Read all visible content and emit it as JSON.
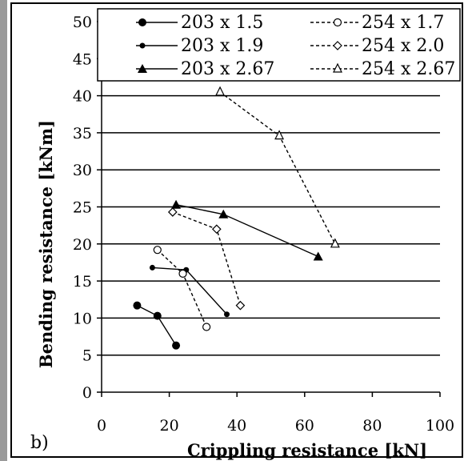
{
  "panel_label": "b)",
  "chart_data": {
    "type": "line",
    "xlabel": "Crippling resistance [kN]",
    "ylabel": "Bending resistance [kNm]",
    "xlim": [
      0,
      100
    ],
    "ylim": [
      0,
      50
    ],
    "x_ticks": [
      "0",
      "20",
      "40",
      "60",
      "80",
      "100"
    ],
    "y_ticks": [
      "0",
      "5",
      "10",
      "15",
      "20",
      "25",
      "30",
      "35",
      "40",
      "45",
      "50"
    ],
    "grid": "horizontal",
    "legend_position": "top",
    "series": [
      {
        "name": "203 x 1.5",
        "style": "solid",
        "marker": "filled-circle",
        "x": [
          10.5,
          16.5,
          22
        ],
        "y": [
          11.7,
          10.3,
          6.3
        ]
      },
      {
        "name": "203 x 1.9",
        "style": "solid",
        "marker": "filled-dot",
        "x": [
          15,
          25,
          37
        ],
        "y": [
          16.8,
          16.5,
          10.5
        ]
      },
      {
        "name": "203 x 2.67",
        "style": "solid",
        "marker": "filled-triangle",
        "x": [
          22,
          36,
          64
        ],
        "y": [
          25.3,
          24,
          18.3
        ]
      },
      {
        "name": "254 x 1.7",
        "style": "dashed",
        "marker": "open-circle",
        "x": [
          16.5,
          24,
          31
        ],
        "y": [
          19.2,
          16,
          8.8
        ]
      },
      {
        "name": "254 x 2.0",
        "style": "dashed",
        "marker": "open-diamond",
        "x": [
          21,
          34,
          41
        ],
        "y": [
          24.3,
          22,
          11.7
        ]
      },
      {
        "name": "254 x 2.67",
        "style": "dashed",
        "marker": "open-triangle",
        "x": [
          35,
          52.5,
          69
        ],
        "y": [
          40.5,
          34.6,
          20
        ]
      }
    ]
  }
}
